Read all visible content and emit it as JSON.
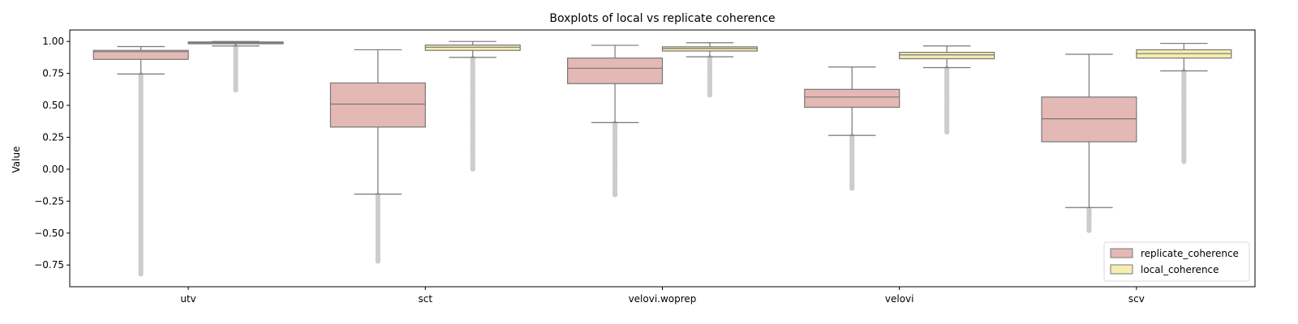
{
  "chart_data": {
    "type": "boxplot",
    "title": "Boxplots of local vs replicate coherence",
    "xlabel": "",
    "ylabel": "Value",
    "ylim": [
      -0.92,
      1.09
    ],
    "yticks": [
      1.0,
      0.75,
      0.5,
      0.25,
      0.0,
      -0.25,
      -0.5,
      -0.75
    ],
    "ytick_labels": [
      "1.00",
      "0.75",
      "0.50",
      "0.25",
      "0.00",
      "−0.25",
      "−0.50",
      "−0.75"
    ],
    "categories": [
      "utv",
      "sct",
      "velovi.woprep",
      "velovi",
      "scv"
    ],
    "legend_position": "lower-right",
    "grid": false,
    "series": [
      {
        "name": "replicate_coherence",
        "color": "#e4b9b5",
        "boxes": [
          {
            "whislo": 0.745,
            "q1": 0.86,
            "med": 0.92,
            "q3": 0.93,
            "whishi": 0.96,
            "fliers_min": -0.82,
            "fliers_max": 0.74
          },
          {
            "whislo": -0.195,
            "q1": 0.33,
            "med": 0.51,
            "q3": 0.675,
            "whishi": 0.935,
            "fliers_min": -0.72,
            "fliers_max": -0.2
          },
          {
            "whislo": 0.365,
            "q1": 0.67,
            "med": 0.79,
            "q3": 0.87,
            "whishi": 0.97,
            "fliers_min": -0.2,
            "fliers_max": 0.36
          },
          {
            "whislo": 0.265,
            "q1": 0.485,
            "med": 0.565,
            "q3": 0.625,
            "whishi": 0.8,
            "fliers_min": -0.15,
            "fliers_max": 0.26
          },
          {
            "whislo": -0.3,
            "q1": 0.215,
            "med": 0.395,
            "q3": 0.565,
            "whishi": 0.9,
            "fliers_min": -0.48,
            "fliers_max": -0.31
          }
        ]
      },
      {
        "name": "local_coherence",
        "color": "#f6edb0",
        "boxes": [
          {
            "whislo": 0.965,
            "q1": 0.982,
            "med": 0.99,
            "q3": 0.996,
            "whishi": 1.0,
            "fliers_min": 0.62,
            "fliers_max": 0.96
          },
          {
            "whislo": 0.875,
            "q1": 0.93,
            "med": 0.955,
            "q3": 0.972,
            "whishi": 1.0,
            "fliers_min": 0.0,
            "fliers_max": 0.87
          },
          {
            "whislo": 0.88,
            "q1": 0.925,
            "med": 0.945,
            "q3": 0.958,
            "whishi": 0.99,
            "fliers_min": 0.58,
            "fliers_max": 0.875
          },
          {
            "whislo": 0.795,
            "q1": 0.865,
            "med": 0.895,
            "q3": 0.915,
            "whishi": 0.965,
            "fliers_min": 0.29,
            "fliers_max": 0.79
          },
          {
            "whislo": 0.77,
            "q1": 0.87,
            "med": 0.905,
            "q3": 0.935,
            "whishi": 0.985,
            "fliers_min": 0.06,
            "fliers_max": 0.765
          }
        ]
      }
    ]
  }
}
